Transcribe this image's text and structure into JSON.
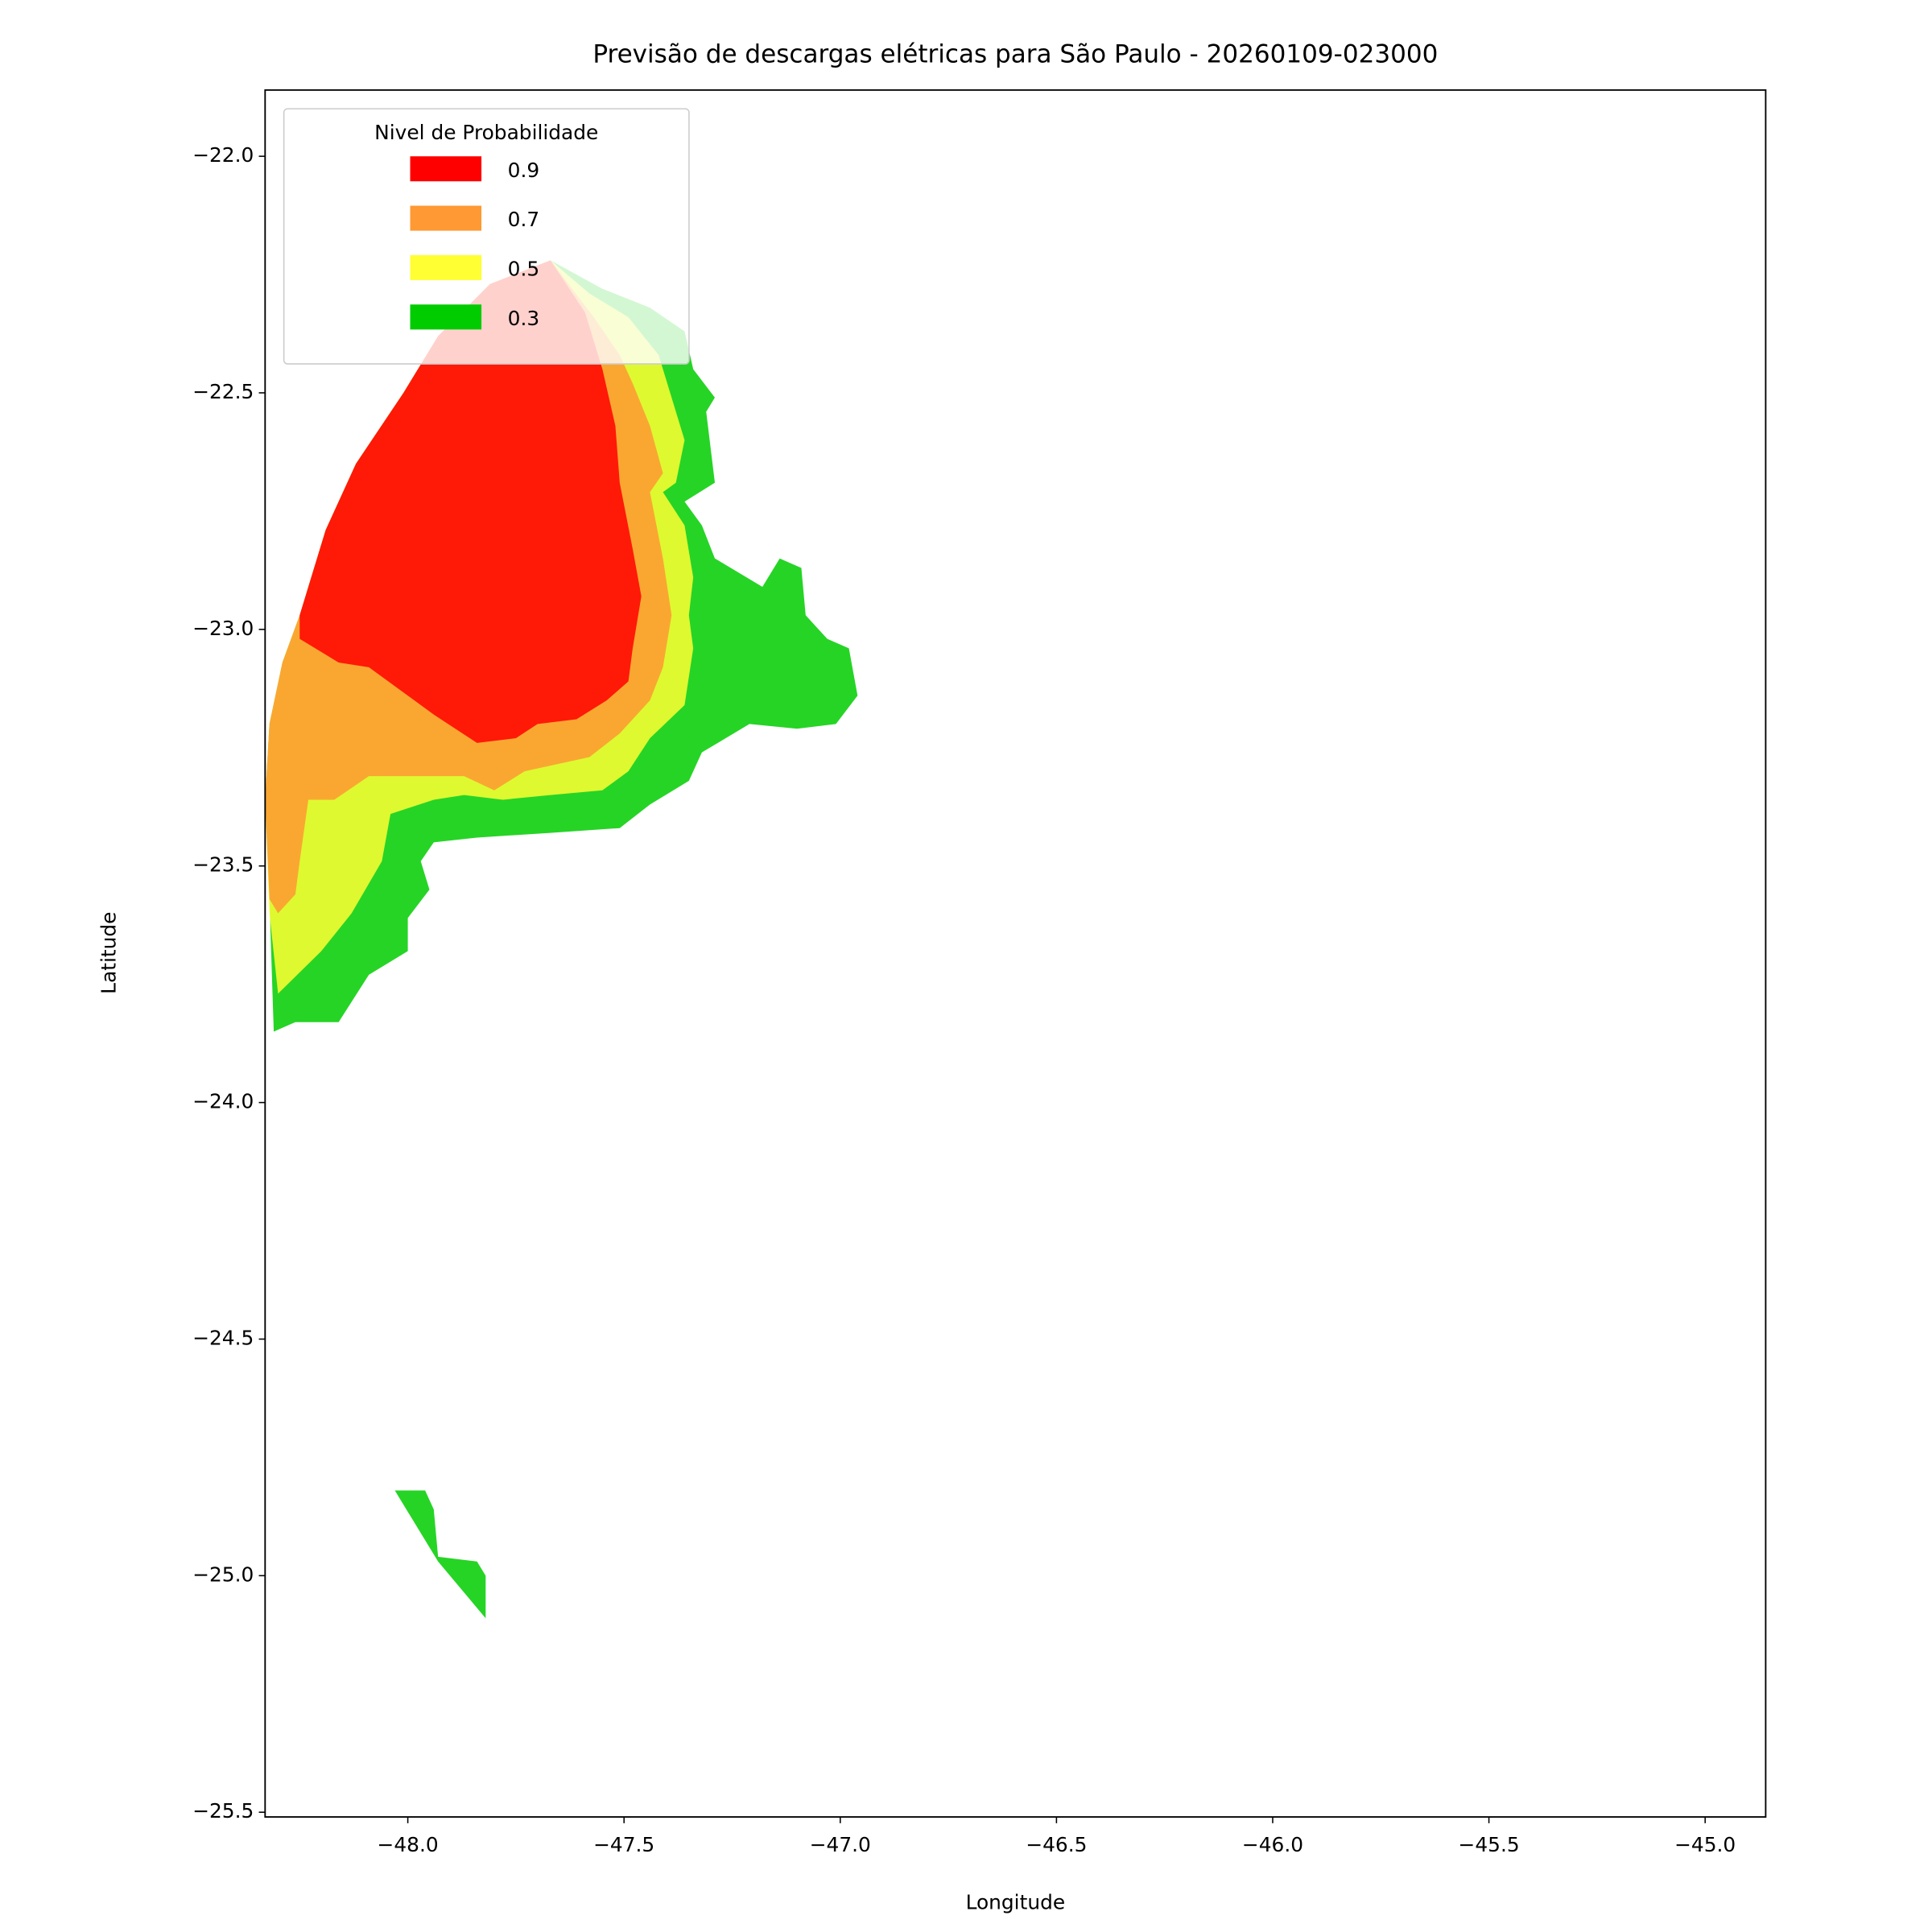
{
  "chart_data": {
    "type": "contourf",
    "title": "Previsão de descargas elétricas para São Paulo - 20260109-023000",
    "xlabel": "Longitude",
    "ylabel": "Latitude",
    "xlim": [
      -48.33,
      -44.86
    ],
    "ylim": [
      -25.51,
      -21.86
    ],
    "xticks": [
      {
        "value": -48.0,
        "label": "−48.0"
      },
      {
        "value": -47.5,
        "label": "−47.5"
      },
      {
        "value": -47.0,
        "label": "−47.0"
      },
      {
        "value": -46.5,
        "label": "−46.5"
      },
      {
        "value": -46.0,
        "label": "−46.0"
      },
      {
        "value": -45.5,
        "label": "−45.5"
      },
      {
        "value": -45.0,
        "label": "−45.0"
      }
    ],
    "yticks": [
      {
        "value": -22.0,
        "label": "−22.0"
      },
      {
        "value": -22.5,
        "label": "−22.5"
      },
      {
        "value": -23.0,
        "label": "−23.0"
      },
      {
        "value": -23.5,
        "label": "−23.5"
      },
      {
        "value": -24.0,
        "label": "−24.0"
      },
      {
        "value": -24.5,
        "label": "−24.5"
      },
      {
        "value": -25.0,
        "label": "−25.0"
      },
      {
        "value": -25.5,
        "label": "−25.5"
      }
    ],
    "legend_title": "Nivel de Probabilidade",
    "legend": "upper left",
    "alpha": 0.85,
    "series": [
      {
        "name": "0.9",
        "color": "#ff0000",
        "regions": [
          {
            "x": [
              -47.67,
              -47.59,
              -47.55,
              -47.52,
              -47.51,
              -47.48,
              -47.46,
              -47.48,
              -47.49,
              -47.54,
              -47.61,
              -47.7,
              -47.75,
              -47.84,
              -47.94,
              -48.09,
              -48.16,
              -48.25,
              -48.25,
              -48.19,
              -48.12,
              -48.01,
              -47.93,
              -47.81
            ],
            "y": [
              -22.22,
              -22.33,
              -22.45,
              -22.57,
              -22.69,
              -22.83,
              -22.93,
              -23.04,
              -23.11,
              -23.15,
              -23.19,
              -23.2,
              -23.23,
              -23.24,
              -23.18,
              -23.08,
              -23.07,
              -23.02,
              -22.97,
              -22.79,
              -22.65,
              -22.5,
              -22.38,
              -22.27
            ]
          }
        ]
      },
      {
        "name": "0.7",
        "color": "#ff9933",
        "regions": [
          {
            "x": [
              -47.67,
              -47.57,
              -47.51,
              -47.48,
              -47.44,
              -47.41,
              -47.44,
              -47.41,
              -47.39,
              -47.41,
              -47.44,
              -47.51,
              -47.58,
              -47.73,
              -47.8,
              -47.87,
              -47.99,
              -48.09,
              -48.17,
              -48.23,
              -48.25,
              -48.26,
              -48.3,
              -48.32,
              -48.33,
              -48.32,
              -48.29,
              -48.25,
              -48.19,
              -48.12,
              -48.01,
              -47.93,
              -47.81
            ],
            "y": [
              -22.22,
              -22.34,
              -22.42,
              -22.48,
              -22.57,
              -22.67,
              -22.71,
              -22.85,
              -22.97,
              -23.08,
              -23.15,
              -23.22,
              -23.27,
              -23.3,
              -23.34,
              -23.31,
              -23.31,
              -23.31,
              -23.36,
              -23.36,
              -23.49,
              -23.56,
              -23.6,
              -23.57,
              -23.36,
              -23.2,
              -23.07,
              -22.97,
              -22.79,
              -22.65,
              -22.5,
              -22.38,
              -22.27
            ]
          }
        ]
      },
      {
        "name": "0.5",
        "color": "#ffff33",
        "regions": [
          {
            "x": [
              -47.67,
              -47.58,
              -47.49,
              -47.42,
              -47.36,
              -47.38,
              -47.41,
              -47.36,
              -47.34,
              -47.35,
              -47.34,
              -47.36,
              -47.44,
              -47.49,
              -47.55,
              -47.67,
              -47.78,
              -47.87,
              -47.94,
              -48.04,
              -48.06,
              -48.13,
              -48.2,
              -48.3,
              -48.32,
              -48.33,
              -48.32,
              -48.29,
              -48.25,
              -48.19,
              -48.12,
              -48.01,
              -47.93,
              -47.81
            ],
            "y": [
              -22.22,
              -22.29,
              -22.34,
              -22.42,
              -22.6,
              -22.69,
              -22.71,
              -22.78,
              -22.89,
              -22.97,
              -23.04,
              -23.16,
              -23.23,
              -23.3,
              -23.34,
              -23.35,
              -23.36,
              -23.35,
              -23.36,
              -23.39,
              -23.49,
              -23.6,
              -23.68,
              -23.77,
              -23.6,
              -23.36,
              -23.2,
              -23.07,
              -22.97,
              -22.79,
              -22.65,
              -22.5,
              -22.38,
              -22.27
            ]
          }
        ]
      },
      {
        "name": "0.3",
        "color": "#00cc00",
        "regions": [
          {
            "x": [
              -47.67,
              -47.55,
              -47.44,
              -47.36,
              -47.34,
              -47.29,
              -47.31,
              -47.29,
              -47.36,
              -47.32,
              -47.29,
              -47.18,
              -47.14,
              -47.09,
              -47.08,
              -47.03,
              -46.98,
              -46.96,
              -47.01,
              -47.1,
              -47.21,
              -47.32,
              -47.35,
              -47.44,
              -47.51,
              -47.67,
              -47.84,
              -47.94,
              -47.97,
              -47.95,
              -48.0,
              -48.0,
              -48.09,
              -48.16,
              -48.26,
              -48.31,
              -48.32,
              -48.33,
              -48.32,
              -48.29,
              -48.25,
              -48.19,
              -48.12,
              -48.01,
              -47.93,
              -47.81
            ],
            "y": [
              -22.22,
              -22.28,
              -22.32,
              -22.37,
              -22.45,
              -22.51,
              -22.54,
              -22.69,
              -22.73,
              -22.78,
              -22.85,
              -22.91,
              -22.85,
              -22.87,
              -22.97,
              -23.02,
              -23.04,
              -23.14,
              -23.2,
              -23.21,
              -23.2,
              -23.26,
              -23.32,
              -23.37,
              -23.42,
              -23.43,
              -23.44,
              -23.45,
              -23.49,
              -23.55,
              -23.61,
              -23.68,
              -23.73,
              -23.83,
              -23.83,
              -23.85,
              -23.57,
              -23.36,
              -23.2,
              -23.07,
              -22.97,
              -22.79,
              -22.65,
              -22.5,
              -22.38,
              -22.27
            ]
          },
          {
            "x": [
              -48.03,
              -47.96,
              -47.94,
              -47.93,
              -47.84,
              -47.82,
              -47.82,
              -47.93
            ],
            "y": [
              -24.82,
              -24.82,
              -24.86,
              -24.96,
              -24.97,
              -25.0,
              -25.09,
              -24.97
            ]
          }
        ]
      }
    ]
  }
}
